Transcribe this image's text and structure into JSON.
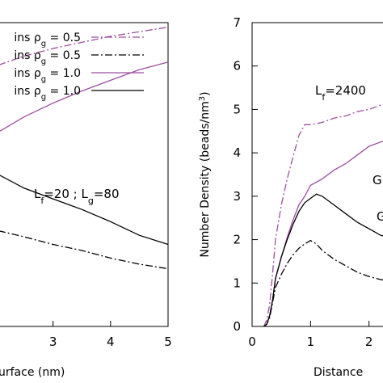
{
  "chart_data": [
    {
      "type": "line",
      "xlabel": "urface (nm)",
      "ylabel": "",
      "xlim": [
        2.05,
        5.0
      ],
      "xticks": [
        "3",
        "4",
        "5"
      ],
      "annotation": {
        "pre": "L",
        "sub1": "f",
        "mid": "=20 ; L",
        "sub2": "g",
        "post": "=80"
      },
      "legend_placement": "top-right",
      "series": [
        {
          "name": {
            "pre": "ins ρ",
            "sub": "g",
            "post": " = 0.5"
          },
          "style": "dashdot",
          "color": "#9b4f9e",
          "x": [
            2.05,
            2.5,
            3.0,
            3.5,
            4.0,
            4.5,
            5.0
          ],
          "y": [
            0.86,
            0.89,
            0.915,
            0.935,
            0.955,
            0.97,
            0.985
          ]
        },
        {
          "name": {
            "pre": "ins ρ",
            "sub": "g",
            "post": " = 0.5"
          },
          "style": "dashdot",
          "color": "#000000",
          "x": [
            2.05,
            2.5,
            3.0,
            3.5,
            4.0,
            4.5,
            5.0
          ],
          "y": [
            0.315,
            0.295,
            0.27,
            0.25,
            0.225,
            0.205,
            0.19
          ]
        },
        {
          "name": {
            "pre": "ins ρ",
            "sub": "g",
            "post": " = 1.0"
          },
          "style": "solid",
          "color": "#9b4f9e",
          "x": [
            2.05,
            2.5,
            3.0,
            3.5,
            4.0,
            4.5,
            5.0
          ],
          "y": [
            0.64,
            0.69,
            0.735,
            0.775,
            0.81,
            0.845,
            0.87
          ]
        },
        {
          "name": {
            "pre": "ins ρ",
            "sub": "g",
            "post": " = 1.0"
          },
          "style": "solid",
          "color": "#000000",
          "x": [
            2.05,
            2.5,
            3.0,
            3.5,
            4.0,
            4.5,
            5.0
          ],
          "y": [
            0.5,
            0.455,
            0.42,
            0.385,
            0.345,
            0.3,
            0.27
          ]
        }
      ]
    },
    {
      "type": "line",
      "xlabel": "Distance",
      "ylabel": "Number Density (beads/nm",
      "ylabel_sup": "3",
      "ylabel_post": ")",
      "xlim": [
        0,
        2.35
      ],
      "ylim": [
        0,
        7
      ],
      "xticks": [
        "0",
        "1",
        "2"
      ],
      "yticks": [
        "0",
        "1",
        "2",
        "3",
        "4",
        "5",
        "6",
        "7"
      ],
      "annotation": {
        "pre": "L",
        "sub": "f",
        "post": "=2400"
      },
      "side_labels": [
        "G",
        "G"
      ],
      "series": [
        {
          "style": "dashdot",
          "color": "#9b4f9e",
          "x": [
            0.2,
            0.25,
            0.3,
            0.35,
            0.4,
            0.5,
            0.6,
            0.7,
            0.8,
            0.9,
            1.0,
            1.2,
            1.4,
            1.6,
            1.8,
            2.0,
            2.2,
            2.35
          ],
          "y": [
            0.0,
            0.15,
            0.5,
            1.2,
            2.0,
            2.8,
            3.4,
            3.9,
            4.4,
            4.65,
            4.65,
            4.7,
            4.8,
            4.85,
            4.95,
            5.0,
            5.1,
            5.15
          ]
        },
        {
          "style": "solid",
          "color": "#9b4f9e",
          "x": [
            0.2,
            0.25,
            0.3,
            0.35,
            0.4,
            0.5,
            0.6,
            0.7,
            0.8,
            0.9,
            1.0,
            1.2,
            1.4,
            1.6,
            1.8,
            2.0,
            2.2,
            2.35
          ],
          "y": [
            0.0,
            0.05,
            0.25,
            0.6,
            1.1,
            1.6,
            2.05,
            2.45,
            2.8,
            3.0,
            3.25,
            3.4,
            3.6,
            3.75,
            3.95,
            4.15,
            4.25,
            4.3
          ]
        },
        {
          "style": "solid",
          "color": "#000000",
          "x": [
            0.2,
            0.25,
            0.3,
            0.35,
            0.4,
            0.5,
            0.6,
            0.7,
            0.8,
            0.9,
            1.0,
            1.1,
            1.2,
            1.4,
            1.6,
            1.8,
            2.0,
            2.2,
            2.35
          ],
          "y": [
            0.0,
            0.05,
            0.25,
            0.6,
            1.1,
            1.6,
            2.0,
            2.35,
            2.65,
            2.85,
            2.95,
            3.05,
            3.0,
            2.8,
            2.6,
            2.4,
            2.25,
            2.1,
            2.05
          ]
        },
        {
          "style": "dashdot",
          "color": "#000000",
          "x": [
            0.2,
            0.25,
            0.3,
            0.35,
            0.4,
            0.5,
            0.6,
            0.7,
            0.8,
            0.9,
            1.0,
            1.1,
            1.2,
            1.4,
            1.6,
            1.8,
            2.0,
            2.2,
            2.35
          ],
          "y": [
            0.0,
            0.05,
            0.2,
            0.55,
            0.9,
            1.2,
            1.45,
            1.65,
            1.8,
            1.9,
            1.98,
            1.9,
            1.75,
            1.55,
            1.4,
            1.25,
            1.15,
            1.08,
            1.05
          ]
        }
      ]
    }
  ]
}
